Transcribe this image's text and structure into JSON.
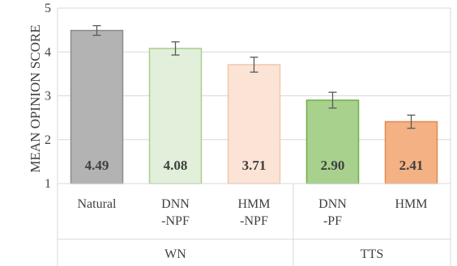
{
  "chart_data": {
    "type": "bar",
    "title": "",
    "ylabel": "MEAN OPINION SCORE",
    "xlabel": "",
    "ylim": [
      1,
      5
    ],
    "yticks": [
      1,
      2,
      3,
      4,
      5
    ],
    "grid": "horizontal",
    "categories": [
      "Natural",
      "DNN\n-NPF",
      "HMM\n-NPF",
      "DNN\n-PF",
      "HMM"
    ],
    "values": [
      4.49,
      4.08,
      3.71,
      2.9,
      2.41
    ],
    "data_labels": [
      "4.49",
      "4.08",
      "3.71",
      "2.90",
      "2.41"
    ],
    "error": [
      0.11,
      0.15,
      0.17,
      0.18,
      0.15
    ],
    "groups": [
      {
        "label": "WN",
        "categories": [
          0,
          1,
          2
        ]
      },
      {
        "label": "TTS",
        "categories": [
          3,
          4
        ]
      }
    ],
    "colors": {
      "fill": [
        "#b3b3b3",
        "#e2efda",
        "#fbe3d6",
        "#a9d18e",
        "#f4b183"
      ],
      "stroke": [
        "#8c8c8c",
        "#a9cf8c",
        "#f2c6ad",
        "#70ad47",
        "#e08b52"
      ],
      "axis": "#d9d9d9",
      "error_bar": "#595959"
    }
  }
}
